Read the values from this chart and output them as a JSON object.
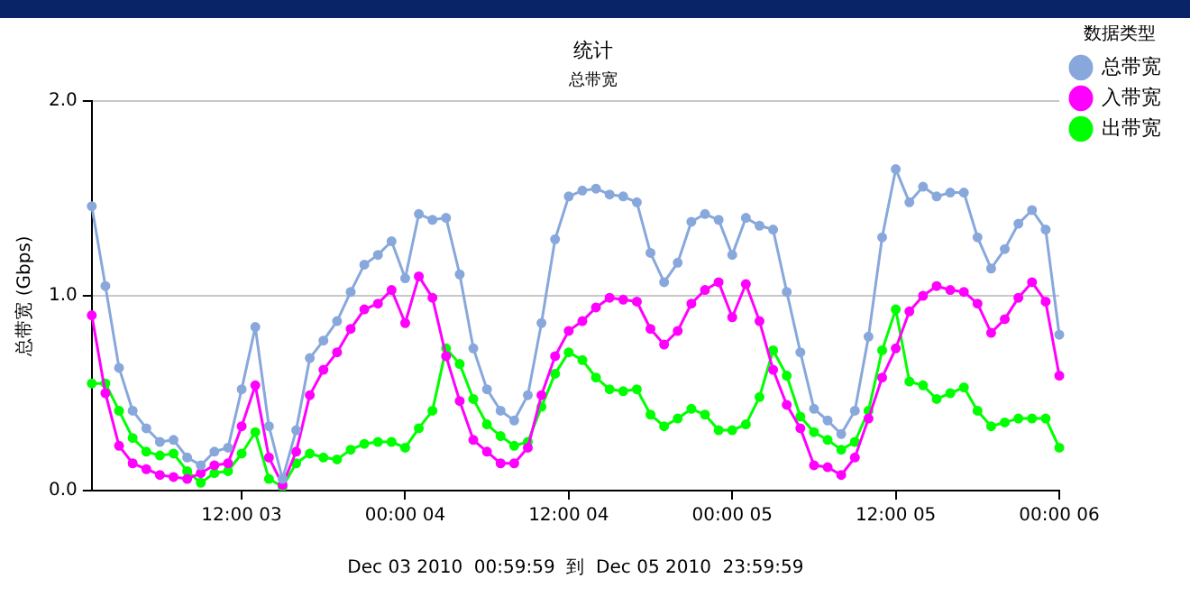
{
  "chart_data": {
    "type": "line",
    "title": "统计",
    "subtitle": "总带宽",
    "xlabel": "Dec 03 2010  00:59:59  到  Dec 05 2010  23:59:59",
    "ylabel": "总带宽 (Gbps)",
    "legend_title": "数据类型",
    "categories": [
      null,
      null,
      null,
      null,
      null,
      null,
      null,
      null,
      null,
      null,
      null,
      "12:00 03",
      null,
      null,
      null,
      null,
      null,
      null,
      null,
      null,
      null,
      null,
      null,
      "00:00 04",
      null,
      null,
      null,
      null,
      null,
      null,
      null,
      null,
      null,
      null,
      null,
      "12:00 04",
      null,
      null,
      null,
      null,
      null,
      null,
      null,
      null,
      null,
      null,
      null,
      "00:00 05",
      null,
      null,
      null,
      null,
      null,
      null,
      null,
      null,
      null,
      null,
      null,
      "12:00 05",
      null,
      null,
      null,
      null,
      null,
      null,
      null,
      null,
      null,
      null,
      null,
      "00:00 06"
    ],
    "ylim": [
      0,
      2
    ],
    "yticks": [
      {
        "value": 0,
        "label": "0.0"
      },
      {
        "value": 1,
        "label": "1.0"
      },
      {
        "value": 2,
        "label": "2.0"
      }
    ],
    "grid": "y",
    "legend": "right",
    "marker": "circle",
    "line_style": "solid",
    "series": [
      {
        "name": "总带宽",
        "color": "#88a8dc",
        "values": [
          1.46,
          1.05,
          0.63,
          0.41,
          0.32,
          0.25,
          0.26,
          0.17,
          0.13,
          0.2,
          0.22,
          0.52,
          0.84,
          0.33,
          0.06,
          0.31,
          0.68,
          0.77,
          0.87,
          1.02,
          1.16,
          1.21,
          1.28,
          1.09,
          1.42,
          1.39,
          1.4,
          1.11,
          0.73,
          0.52,
          0.41,
          0.36,
          0.49,
          0.86,
          1.29,
          1.51,
          1.54,
          1.55,
          1.52,
          1.51,
          1.48,
          1.22,
          1.07,
          1.17,
          1.38,
          1.42,
          1.39,
          1.21,
          1.4,
          1.36,
          1.34,
          1.02,
          0.71,
          0.42,
          0.36,
          0.29,
          0.41,
          0.79,
          1.3,
          1.65,
          1.48,
          1.56,
          1.51,
          1.53,
          1.53,
          1.3,
          1.14,
          1.24,
          1.37,
          1.44,
          1.34,
          0.8
        ]
      },
      {
        "name": "入带宽",
        "color": "#ff00ff",
        "values": [
          0.9,
          0.5,
          0.23,
          0.14,
          0.11,
          0.08,
          0.07,
          0.06,
          0.09,
          0.13,
          0.14,
          0.33,
          0.54,
          0.17,
          0.03,
          0.2,
          0.49,
          0.62,
          0.71,
          0.83,
          0.93,
          0.96,
          1.03,
          0.86,
          1.1,
          0.99,
          0.69,
          0.46,
          0.26,
          0.2,
          0.14,
          0.14,
          0.22,
          0.49,
          0.69,
          0.82,
          0.87,
          0.94,
          0.99,
          0.98,
          0.97,
          0.83,
          0.75,
          0.82,
          0.96,
          1.03,
          1.07,
          0.89,
          1.06,
          0.87,
          0.62,
          0.44,
          0.32,
          0.13,
          0.12,
          0.08,
          0.17,
          0.37,
          0.58,
          0.73,
          0.92,
          1.0,
          1.05,
          1.03,
          1.02,
          0.96,
          0.81,
          0.88,
          0.99,
          1.07,
          0.97,
          0.59
        ]
      },
      {
        "name": "出带宽",
        "color": "#00ff00",
        "values": [
          0.55,
          0.55,
          0.41,
          0.27,
          0.2,
          0.18,
          0.19,
          0.1,
          0.04,
          0.09,
          0.1,
          0.19,
          0.3,
          0.06,
          0.02,
          0.14,
          0.19,
          0.17,
          0.16,
          0.21,
          0.24,
          0.25,
          0.25,
          0.22,
          0.32,
          0.41,
          0.73,
          0.65,
          0.47,
          0.34,
          0.28,
          0.23,
          0.25,
          0.43,
          0.6,
          0.71,
          0.67,
          0.58,
          0.52,
          0.51,
          0.52,
          0.39,
          0.33,
          0.37,
          0.42,
          0.39,
          0.31,
          0.31,
          0.34,
          0.48,
          0.72,
          0.59,
          0.38,
          0.3,
          0.26,
          0.21,
          0.25,
          0.41,
          0.72,
          0.93,
          0.56,
          0.54,
          0.47,
          0.5,
          0.53,
          0.41,
          0.33,
          0.35,
          0.37,
          0.37,
          0.37,
          0.22
        ]
      }
    ]
  }
}
